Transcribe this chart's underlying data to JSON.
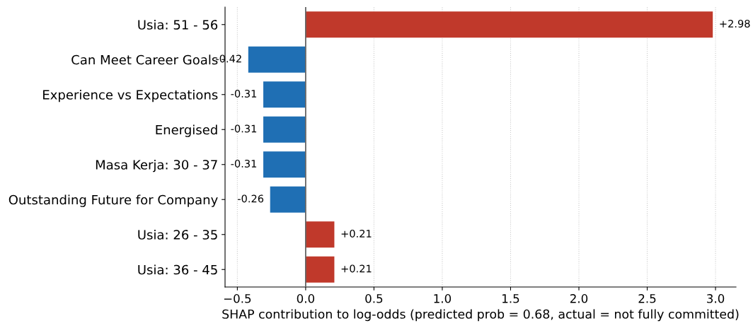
{
  "chart_data": {
    "type": "bar",
    "orientation": "horizontal",
    "xlabel": "SHAP contribution to log-odds (predicted prob = 0.68, actual = not fully committed)",
    "categories": [
      "Usia: 51 - 56",
      "Can Meet Career Goals",
      "Experience vs Expectations",
      "Energised",
      "Masa Kerja: 30 - 37",
      "Outstanding Future for Company",
      "Usia: 26 - 35",
      "Usia: 36 - 45"
    ],
    "values": [
      2.98,
      -0.42,
      -0.31,
      -0.31,
      -0.31,
      -0.26,
      0.21,
      0.21
    ],
    "value_labels": [
      "+2.98",
      "-0.42",
      "-0.31",
      "-0.31",
      "-0.31",
      "-0.26",
      "+0.21",
      "+0.21"
    ],
    "colors": [
      "#c0392b",
      "#1f6fb4",
      "#1f6fb4",
      "#1f6fb4",
      "#1f6fb4",
      "#1f6fb4",
      "#c0392b",
      "#c0392b"
    ],
    "xlim": [
      -0.59,
      3.15
    ],
    "xticks": [
      {
        "value": -0.5,
        "label": "−0.5"
      },
      {
        "value": 0,
        "label": "0.0"
      },
      {
        "value": 0.5,
        "label": "0.5"
      },
      {
        "value": 1,
        "label": "1.0"
      },
      {
        "value": 1.5,
        "label": "1.5"
      },
      {
        "value": 2,
        "label": "2.0"
      },
      {
        "value": 2.5,
        "label": "2.5"
      },
      {
        "value": 3,
        "label": "3.0"
      }
    ],
    "ref_lines": [
      {
        "axis": "x",
        "value": 0,
        "label": null,
        "color": "#666666"
      }
    ],
    "grid": "x"
  }
}
